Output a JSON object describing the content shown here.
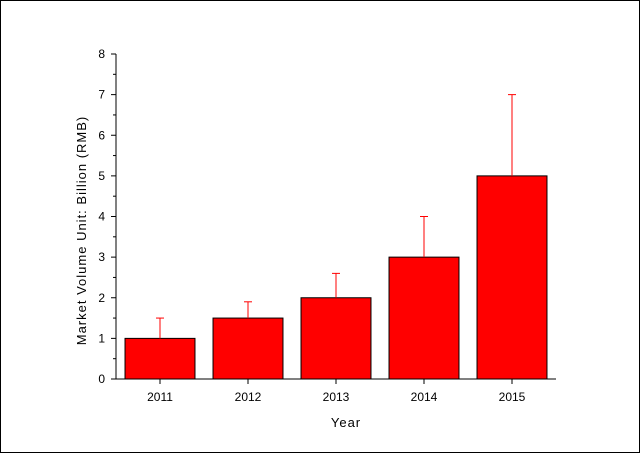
{
  "chart_data": {
    "type": "bar",
    "categories": [
      "2011",
      "2012",
      "2013",
      "2014",
      "2015"
    ],
    "values": [
      1,
      1.5,
      2,
      3,
      5
    ],
    "error_upper": [
      1.5,
      1.9,
      2.6,
      4,
      7
    ],
    "xlabel": "Year",
    "ylabel": "Market Volume Unit: Billion (RMB)",
    "ylim": [
      0,
      8
    ],
    "yticks": [
      0,
      1,
      2,
      3,
      4,
      5,
      6,
      7,
      8
    ],
    "grid": false,
    "legend": "none",
    "colors": {
      "bar_fill": "#ff0000",
      "bar_stroke": "#000000",
      "error_bar": "#ff0000"
    }
  }
}
